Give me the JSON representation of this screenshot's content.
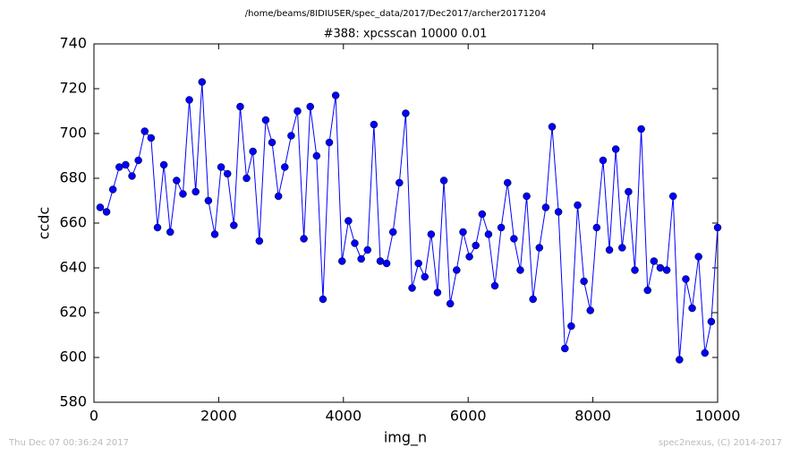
{
  "chart_data": {
    "type": "line",
    "suptitle": "/home/beams/8IDIUSER/spec_data/2017/Dec2017/archer20171204",
    "title": "#388: xpcsscan 10000 0.01",
    "xlabel": "img_n",
    "ylabel": "ccdc",
    "footer_left": "Thu Dec 07 00:36:24 2017",
    "footer_right": "spec2nexus, (C) 2014-2017",
    "color": "#0000ff",
    "markers": true,
    "xlim": [
      0,
      10000
    ],
    "ylim": [
      580,
      740
    ],
    "xticks": [
      0,
      2000,
      4000,
      6000,
      8000,
      10000
    ],
    "yticks": [
      580,
      600,
      620,
      640,
      660,
      680,
      700,
      720,
      740
    ],
    "x": [
      100,
      202,
      304,
      406,
      508,
      610,
      712,
      814,
      916,
      1019,
      1121,
      1223,
      1325,
      1427,
      1529,
      1631,
      1733,
      1835,
      1937,
      2039,
      2141,
      2243,
      2345,
      2447,
      2549,
      2652,
      2754,
      2856,
      2958,
      3060,
      3162,
      3264,
      3366,
      3468,
      3570,
      3672,
      3774,
      3876,
      3978,
      4080,
      4182,
      4285,
      4387,
      4489,
      4591,
      4693,
      4795,
      4897,
      4999,
      5101,
      5203,
      5305,
      5407,
      5509,
      5611,
      5713,
      5815,
      5918,
      6020,
      6122,
      6224,
      6326,
      6428,
      6530,
      6632,
      6734,
      6836,
      6938,
      7040,
      7142,
      7244,
      7346,
      7448,
      7551,
      7653,
      7755,
      7857,
      7959,
      8061,
      8163,
      8265,
      8367,
      8469,
      8571,
      8673,
      8775,
      8877,
      8979,
      9081,
      9184,
      9286,
      9388,
      9490,
      9592,
      9694,
      9796,
      9898,
      10000
    ],
    "values": [
      667,
      665,
      675,
      685,
      686,
      681,
      688,
      701,
      698,
      658,
      686,
      656,
      679,
      673,
      715,
      674,
      723,
      670,
      655,
      685,
      682,
      659,
      712,
      680,
      692,
      652,
      706,
      696,
      672,
      685,
      699,
      710,
      653,
      712,
      690,
      626,
      696,
      717,
      643,
      661,
      651,
      644,
      648,
      704,
      643,
      642,
      656,
      678,
      709,
      631,
      642,
      636,
      655,
      629,
      679,
      624,
      639,
      656,
      645,
      650,
      664,
      655,
      632,
      658,
      678,
      653,
      639,
      672,
      626,
      649,
      667,
      703,
      665,
      604,
      614,
      668,
      634,
      621,
      658,
      688,
      648,
      693,
      649,
      674,
      639,
      702,
      630,
      643,
      640,
      639,
      672,
      599,
      635,
      622,
      645,
      602,
      616,
      658
    ]
  }
}
